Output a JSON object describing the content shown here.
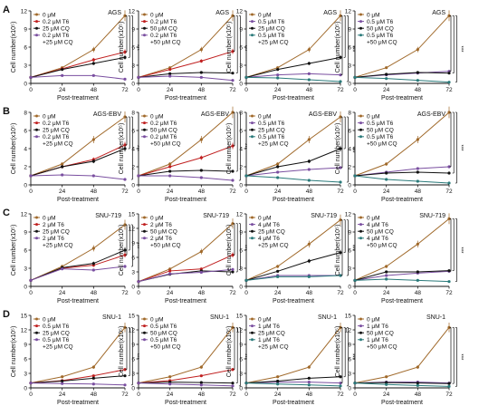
{
  "colors": {
    "s0": "#a0692a",
    "s1": "#c02020",
    "s2": "#111111",
    "s3": "#7a4fa0",
    "s4": "#2a7a7a",
    "axis": "#111111"
  },
  "common": {
    "ylabel": "Cell number(x10⁵)",
    "xlabel": "Post-treatment",
    "xticks": [
      0,
      24,
      48,
      72
    ],
    "star_label": "***"
  },
  "chart_data": [
    {
      "type": "line",
      "row": "A",
      "col": 0,
      "title": "AGS",
      "ylim": [
        0,
        12
      ],
      "yticks": [
        0,
        3,
        6,
        9,
        12
      ],
      "x": [
        0,
        24,
        48,
        72
      ],
      "series": [
        {
          "name": "0 μM",
          "color": "s0",
          "values": [
            1,
            2.6,
            5.6,
            11.2
          ]
        },
        {
          "name": "0.2 μM T6",
          "color": "s1",
          "values": [
            1,
            2.4,
            3.9,
            5.2
          ]
        },
        {
          "name": "25 μM CQ",
          "color": "s2",
          "values": [
            1,
            2.3,
            3.3,
            4.3
          ]
        },
        {
          "name": "0.2 μM T6",
          "name2": "+25 μM CQ",
          "color": "s3",
          "values": [
            1,
            1.3,
            1.3,
            0.7
          ]
        }
      ]
    },
    {
      "type": "line",
      "row": "A",
      "col": 1,
      "title": "AGS",
      "ylim": [
        0,
        12
      ],
      "yticks": [
        0,
        3,
        6,
        9,
        12
      ],
      "x": [
        0,
        24,
        48,
        72
      ],
      "series": [
        {
          "name": "0 μM",
          "color": "s0",
          "values": [
            1,
            2.6,
            5.6,
            11.2
          ]
        },
        {
          "name": "0.2 μM T6",
          "color": "s1",
          "values": [
            1,
            2.3,
            3.7,
            5.3
          ]
        },
        {
          "name": "50 μM CQ",
          "color": "s2",
          "values": [
            1,
            1.6,
            1.8,
            1.7
          ]
        },
        {
          "name": "0.2 μM T6",
          "name2": "+50 μM CQ",
          "color": "s3",
          "values": [
            1,
            1.2,
            1,
            0.5
          ]
        }
      ]
    },
    {
      "type": "line",
      "row": "A",
      "col": 2,
      "title": "AGS",
      "ylim": [
        0,
        12
      ],
      "yticks": [
        0,
        3,
        6,
        9,
        12
      ],
      "x": [
        0,
        24,
        48,
        72
      ],
      "series": [
        {
          "name": "0 μM",
          "color": "s0",
          "values": [
            1,
            2.6,
            5.6,
            11.2
          ]
        },
        {
          "name": "0.5 μM T6",
          "color": "s3",
          "values": [
            1,
            1.4,
            1.6,
            1.4
          ]
        },
        {
          "name": "25 μM CQ",
          "color": "s2",
          "values": [
            1,
            2.3,
            3.3,
            4.3
          ]
        },
        {
          "name": "0.5 μM T6",
          "name2": "+25 μM CQ",
          "color": "s4",
          "values": [
            1,
            0.9,
            0.6,
            0.3
          ]
        }
      ]
    },
    {
      "type": "line",
      "row": "A",
      "col": 3,
      "title": "AGS",
      "ylim": [
        0,
        12
      ],
      "yticks": [
        0,
        3,
        6,
        9,
        12
      ],
      "x": [
        0,
        24,
        48,
        72
      ],
      "series": [
        {
          "name": "0 μM",
          "color": "s0",
          "values": [
            1,
            2.6,
            5.6,
            11.2
          ]
        },
        {
          "name": "0.5 μM T6",
          "color": "s3",
          "values": [
            1,
            1.4,
            1.7,
            2
          ]
        },
        {
          "name": "50 μM CQ",
          "color": "s2",
          "values": [
            1,
            1.5,
            1.8,
            1.7
          ]
        },
        {
          "name": "0.5 μM T6",
          "name2": "+50 μM CQ",
          "color": "s4",
          "values": [
            1,
            0.8,
            0.5,
            0.2
          ]
        }
      ]
    },
    {
      "type": "line",
      "row": "B",
      "col": 0,
      "title": "AGS-EBV",
      "ylim": [
        0,
        8
      ],
      "yticks": [
        0,
        2,
        4,
        6,
        8
      ],
      "x": [
        0,
        24,
        48,
        72
      ],
      "series": [
        {
          "name": "0 μM",
          "color": "s0",
          "values": [
            1,
            2.3,
            5,
            7.5
          ]
        },
        {
          "name": "0.2 μM T6",
          "color": "s1",
          "values": [
            1,
            2,
            2.8,
            4.4
          ]
        },
        {
          "name": "25 μM CQ",
          "color": "s2",
          "values": [
            1,
            2,
            2.6,
            4
          ]
        },
        {
          "name": "0.2 μM T6",
          "name2": "+25 μM CQ",
          "color": "s3",
          "values": [
            1,
            1.1,
            1,
            0.6
          ]
        }
      ]
    },
    {
      "type": "line",
      "row": "B",
      "col": 1,
      "title": "AGS-EBV",
      "ylim": [
        0,
        8
      ],
      "yticks": [
        0,
        2,
        4,
        6,
        8
      ],
      "x": [
        0,
        24,
        48,
        72
      ],
      "series": [
        {
          "name": "0 μM",
          "color": "s0",
          "values": [
            1,
            2.3,
            5,
            8
          ]
        },
        {
          "name": "0.2 μM T6",
          "color": "s1",
          "values": [
            1,
            2,
            3,
            4.3
          ]
        },
        {
          "name": "50 μM CQ",
          "color": "s2",
          "values": [
            1,
            1.5,
            1.6,
            1.5
          ]
        },
        {
          "name": "0.2 μM T6",
          "name2": "+50 μM CQ",
          "color": "s3",
          "values": [
            1,
            1,
            0.8,
            0.5
          ]
        }
      ]
    },
    {
      "type": "line",
      "row": "B",
      "col": 2,
      "title": "AGS-EBV",
      "ylim": [
        0,
        8
      ],
      "yticks": [
        0,
        2,
        4,
        6,
        8
      ],
      "x": [
        0,
        24,
        48,
        72
      ],
      "series": [
        {
          "name": "0 μM",
          "color": "s0",
          "values": [
            1,
            2.3,
            5,
            7.5
          ]
        },
        {
          "name": "0.5 μM T6",
          "color": "s3",
          "values": [
            1,
            1.4,
            1.7,
            1.9
          ]
        },
        {
          "name": "25 μM CQ",
          "color": "s2",
          "values": [
            1,
            2,
            2.6,
            4
          ]
        },
        {
          "name": "0.5 μM T6",
          "name2": "+25 μM CQ",
          "color": "s4",
          "values": [
            1,
            0.8,
            0.5,
            0.3
          ]
        }
      ]
    },
    {
      "type": "line",
      "row": "B",
      "col": 3,
      "title": "AGS-EBV",
      "ylim": [
        0,
        8
      ],
      "yticks": [
        0,
        2,
        4,
        6,
        8
      ],
      "x": [
        0,
        24,
        48,
        72
      ],
      "series": [
        {
          "name": "0 μM",
          "color": "s0",
          "values": [
            1,
            2.3,
            5,
            8
          ]
        },
        {
          "name": "0.5 μM T6",
          "color": "s3",
          "values": [
            1,
            1.4,
            1.8,
            2
          ]
        },
        {
          "name": "50 μM CQ",
          "color": "s2",
          "values": [
            1,
            1.3,
            1.4,
            1.3
          ]
        },
        {
          "name": "0.5 μM T6",
          "name2": "+50 μM CQ",
          "color": "s4",
          "values": [
            1,
            0.6,
            0.4,
            0.2
          ]
        }
      ]
    },
    {
      "type": "line",
      "row": "C",
      "col": 0,
      "title": "SNU-719",
      "ylim": [
        0,
        12
      ],
      "yticks": [
        0,
        3,
        6,
        9,
        12
      ],
      "x": [
        0,
        24,
        48,
        72
      ],
      "series": [
        {
          "name": "0 μM",
          "color": "s0",
          "values": [
            1,
            3.3,
            6.3,
            10.2
          ]
        },
        {
          "name": "2 μM T6",
          "color": "s1",
          "values": [
            1,
            3,
            3.5,
            5.2
          ]
        },
        {
          "name": "25 μM CQ",
          "color": "s2",
          "values": [
            1,
            3.1,
            3.8,
            6
          ]
        },
        {
          "name": "2 μM T6",
          "name2": "+25 μM CQ",
          "color": "s3",
          "values": [
            1,
            2.9,
            2.7,
            3.3
          ]
        }
      ]
    },
    {
      "type": "line",
      "row": "C",
      "col": 1,
      "title": "SNU-719",
      "ylim": [
        0,
        15
      ],
      "yticks": [
        0,
        3,
        6,
        9,
        12,
        15
      ],
      "x": [
        0,
        24,
        48,
        72
      ],
      "series": [
        {
          "name": "0 μM",
          "color": "s0",
          "values": [
            1,
            3.6,
            7.2,
            13
          ]
        },
        {
          "name": "2 μM T6",
          "color": "s1",
          "values": [
            1,
            3.2,
            3.6,
            6.5
          ]
        },
        {
          "name": "50 μM CQ",
          "color": "s2",
          "values": [
            1,
            2.5,
            3.2,
            3
          ]
        },
        {
          "name": "2 μM T6",
          "name2": "+50 μM CQ",
          "color": "s3",
          "values": [
            1,
            2.6,
            2.9,
            3.5
          ]
        }
      ]
    },
    {
      "type": "line",
      "row": "C",
      "col": 2,
      "title": "SNU-719",
      "ylim": [
        0,
        12
      ],
      "yticks": [
        0,
        3,
        6,
        9,
        12
      ],
      "x": [
        0,
        24,
        48,
        72
      ],
      "series": [
        {
          "name": "0 μM",
          "color": "s0",
          "values": [
            1,
            3.3,
            7,
            11
          ]
        },
        {
          "name": "4 μM T6",
          "color": "s3",
          "values": [
            1,
            1.8,
            1.8,
            1.8
          ]
        },
        {
          "name": "25 μM CQ",
          "color": "s2",
          "values": [
            1,
            2.5,
            4.2,
            5.6
          ]
        },
        {
          "name": "4 μM T6",
          "name2": "+25 μM CQ",
          "color": "s4",
          "values": [
            1,
            1.6,
            1.6,
            1.8
          ]
        }
      ]
    },
    {
      "type": "line",
      "row": "C",
      "col": 3,
      "title": "SNU-719",
      "ylim": [
        0,
        12
      ],
      "yticks": [
        0,
        3,
        6,
        9,
        12
      ],
      "x": [
        0,
        24,
        48,
        72
      ],
      "series": [
        {
          "name": "0 μM",
          "color": "s0",
          "values": [
            1,
            3.3,
            7,
            11.2
          ]
        },
        {
          "name": "4 μM T6",
          "color": "s3",
          "values": [
            1,
            1.8,
            2.2,
            2.5
          ]
        },
        {
          "name": "50 μM CQ",
          "color": "s2",
          "values": [
            1,
            2.4,
            2.4,
            2.6
          ]
        },
        {
          "name": "4 μM T6",
          "name2": "+50 μM CQ",
          "color": "s4",
          "values": [
            1,
            1.2,
            1,
            0.8
          ]
        }
      ]
    },
    {
      "type": "line",
      "row": "D",
      "col": 0,
      "title": "SNU-1",
      "ylim": [
        0,
        15
      ],
      "yticks": [
        0,
        3,
        6,
        9,
        12,
        15
      ],
      "x": [
        0,
        24,
        48,
        72
      ],
      "series": [
        {
          "name": "0 μM",
          "color": "s0",
          "values": [
            1,
            2.3,
            4.3,
            12.5
          ]
        },
        {
          "name": "0.5 μM T6",
          "color": "s1",
          "values": [
            1,
            1.5,
            2.5,
            3.8
          ]
        },
        {
          "name": "25 μM CQ",
          "color": "s2",
          "values": [
            1,
            1.4,
            2,
            2.5
          ]
        },
        {
          "name": "0.5 μM T6",
          "name2": "+25 μM CQ",
          "color": "s3",
          "values": [
            1,
            0.9,
            0.8,
            0.6
          ]
        }
      ]
    },
    {
      "type": "line",
      "row": "D",
      "col": 1,
      "title": "SNU-1",
      "ylim": [
        0,
        15
      ],
      "yticks": [
        0,
        3,
        6,
        9,
        12,
        15
      ],
      "x": [
        0,
        24,
        48,
        72
      ],
      "series": [
        {
          "name": "0 μM",
          "color": "s0",
          "values": [
            1,
            2.3,
            4.3,
            12.5
          ]
        },
        {
          "name": "0.5 μM T6",
          "color": "s1",
          "values": [
            1,
            1.5,
            2.5,
            3.8
          ]
        },
        {
          "name": "50 μM CQ",
          "color": "s2",
          "values": [
            1,
            1.2,
            1.1,
            1
          ]
        },
        {
          "name": "0.5 μM T6",
          "name2": "+50 μM CQ",
          "color": "s3",
          "values": [
            1,
            0.8,
            0.6,
            0.4
          ]
        }
      ]
    },
    {
      "type": "line",
      "row": "D",
      "col": 2,
      "title": "SNU-1",
      "ylim": [
        0,
        15
      ],
      "yticks": [
        0,
        3,
        6,
        9,
        12,
        15
      ],
      "x": [
        0,
        24,
        48,
        72
      ],
      "series": [
        {
          "name": "0 μM",
          "color": "s0",
          "values": [
            1,
            2.3,
            4.3,
            12.5
          ]
        },
        {
          "name": "1 μM T6",
          "color": "s3",
          "values": [
            1,
            1.2,
            1.2,
            1
          ]
        },
        {
          "name": "25 μM CQ",
          "color": "s2",
          "values": [
            1,
            1.4,
            2,
            2.3
          ]
        },
        {
          "name": "1 μM T6",
          "name2": "+25 μM CQ",
          "color": "s4",
          "values": [
            1,
            0.8,
            0.6,
            0.4
          ]
        }
      ]
    },
    {
      "type": "line",
      "row": "D",
      "col": 3,
      "title": "SNU-1",
      "ylim": [
        0,
        15
      ],
      "yticks": [
        0,
        3,
        6,
        9,
        12,
        15
      ],
      "x": [
        0,
        24,
        48,
        72
      ],
      "series": [
        {
          "name": "0 μM",
          "color": "s0",
          "values": [
            1,
            2.3,
            4.3,
            12.5
          ]
        },
        {
          "name": "1 μM T6",
          "color": "s3",
          "values": [
            1,
            1.2,
            1.2,
            1
          ]
        },
        {
          "name": "50 μM CQ",
          "color": "s2",
          "values": [
            1,
            1.1,
            1,
            0.9
          ]
        },
        {
          "name": "1 μM T6",
          "name2": "+50 μM CQ",
          "color": "s4",
          "values": [
            1,
            0.7,
            0.5,
            0.3
          ]
        }
      ]
    }
  ]
}
